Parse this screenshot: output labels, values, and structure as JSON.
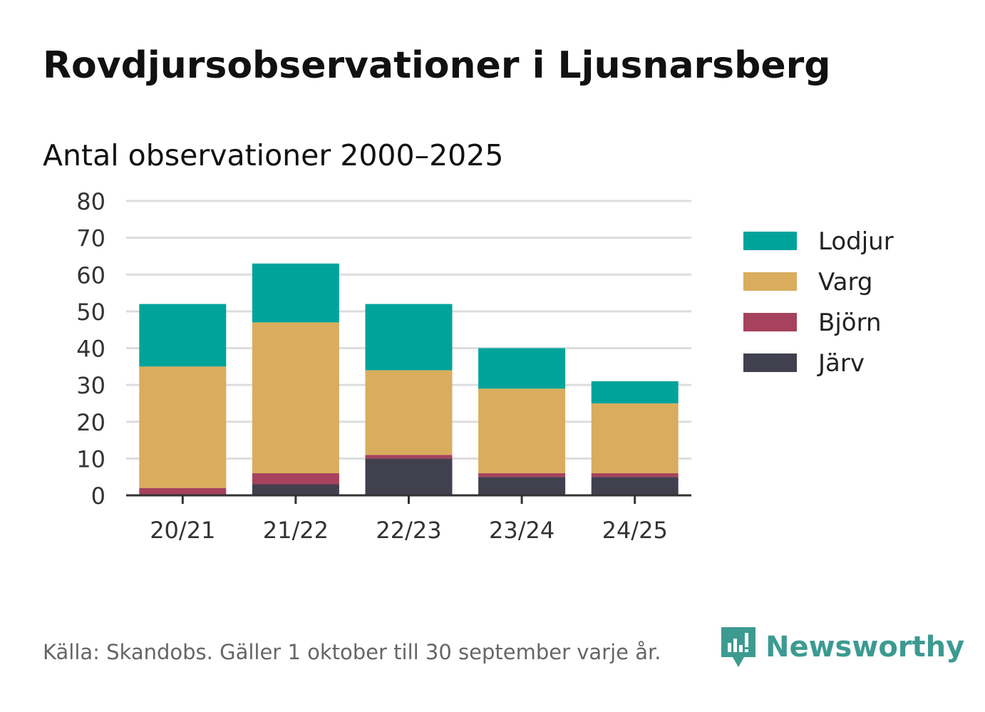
{
  "title": "Rovdjursobservationer i Ljusnarsberg",
  "subtitle": "Antal observationer 2000–2025",
  "footer": "Källa: Skandobs. Gäller 1 oktober till 30 september varje år.",
  "brand": {
    "name": "Newsworthy",
    "icon": "newsworthy-logo-icon",
    "color": "#3d9a91"
  },
  "chart_data": {
    "type": "bar",
    "stacked": true,
    "title": "Antal observationer 2000–2025",
    "xlabel": "",
    "ylabel": "",
    "ylim": [
      0,
      80
    ],
    "yticks": [
      0,
      10,
      20,
      30,
      40,
      50,
      60,
      70,
      80
    ],
    "grid": true,
    "legend_position": "right",
    "categories": [
      "20/21",
      "21/22",
      "22/23",
      "23/24",
      "24/25"
    ],
    "series": [
      {
        "name": "Järv",
        "color": "#41404e",
        "values": [
          0,
          3,
          10,
          5,
          5
        ]
      },
      {
        "name": "Björn",
        "color": "#a6425e",
        "values": [
          2,
          3,
          1,
          1,
          1
        ]
      },
      {
        "name": "Varg",
        "color": "#d9ad5d",
        "values": [
          33,
          41,
          23,
          23,
          19
        ]
      },
      {
        "name": "Lodjur",
        "color": "#00a39a",
        "values": [
          17,
          16,
          18,
          11,
          6
        ]
      }
    ],
    "legend_order": [
      "Lodjur",
      "Varg",
      "Björn",
      "Järv"
    ]
  }
}
